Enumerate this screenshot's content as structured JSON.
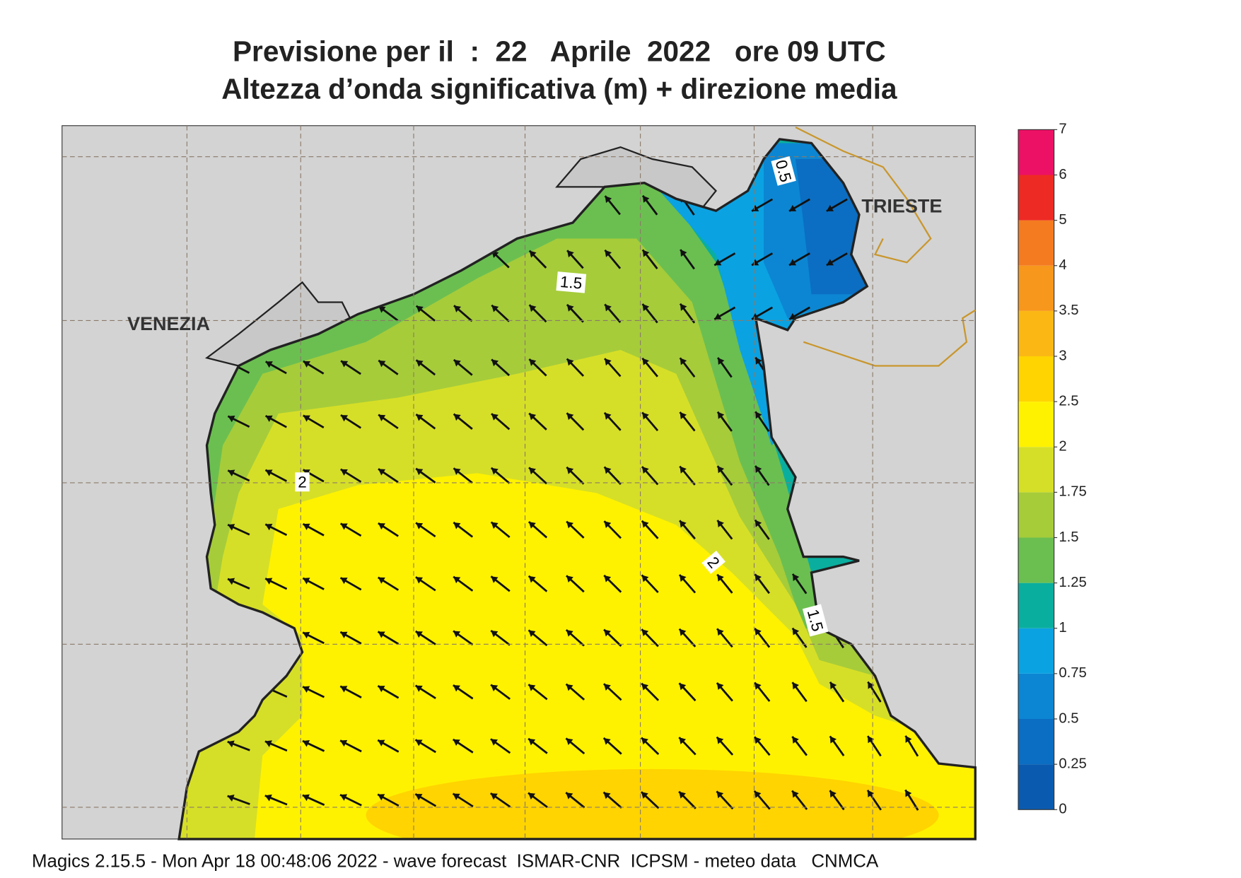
{
  "header": {
    "title": "Previsione per il  :  22   Aprile  2022   ore 09 UTC",
    "subtitle": "Altezza d’onda significativa (m) + direzione media"
  },
  "places": [
    "VENEZIA",
    "TRIESTE"
  ],
  "contour_labels": [
    "0.5",
    "1.5",
    "2",
    "2",
    "1.5"
  ],
  "colorbar": {
    "levels": [
      0,
      0.25,
      0.5,
      0.75,
      1,
      1.25,
      1.5,
      1.75,
      2,
      2.5,
      3,
      3.5,
      4,
      5,
      6,
      7
    ],
    "colors": [
      "#0a5bb0",
      "#0b6ec2",
      "#0c86d2",
      "#0ba2e2",
      "#0aae9f",
      "#6bbf50",
      "#a6cc3a",
      "#d6df27",
      "#fff200",
      "#ffd400",
      "#fbb815",
      "#f7971c",
      "#f47b20",
      "#ee2a24",
      "#ec1164"
    ]
  },
  "footer": "Magics 2.15.5 - Mon Apr 18 00:48:06 2022 - wave forecast  ISMAR-CNR  ICPSM - meteo data   CNMCA"
}
